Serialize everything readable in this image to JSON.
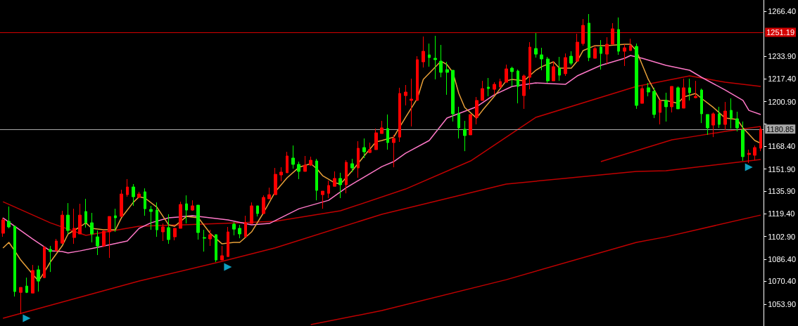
{
  "chart_data": {
    "type": "candlestick",
    "categories": [
      null,
      null,
      null,
      null,
      null,
      null,
      null,
      null,
      null,
      null,
      null,
      null,
      null,
      null,
      null,
      null,
      null,
      null,
      null,
      null,
      null,
      null,
      null,
      null,
      null,
      null,
      null,
      null,
      null,
      null,
      null,
      null,
      null,
      null,
      null,
      null,
      null,
      null,
      null,
      null,
      null,
      null,
      null,
      null,
      null,
      null,
      null,
      null,
      null,
      null,
      null,
      null,
      null,
      null,
      null,
      null,
      null,
      null,
      null,
      null,
      null,
      null,
      null,
      null,
      null,
      null,
      null,
      null,
      null,
      null,
      null,
      null,
      null,
      null,
      null,
      null,
      null,
      null,
      null,
      null,
      null,
      null,
      null,
      null,
      null,
      null,
      null,
      null,
      null,
      null,
      null,
      null,
      null,
      null,
      null,
      null,
      null,
      null,
      null,
      null,
      null,
      null,
      null,
      null,
      null,
      null,
      null,
      null,
      null,
      null,
      null,
      null,
      null,
      null,
      null,
      null,
      null,
      null,
      null,
      null,
      null,
      null,
      null,
      null,
      null,
      null,
      null,
      null,
      null
    ],
    "ylim": [
      1038.0,
      1274.6
    ],
    "yticks": [
      {
        "value": 1053.9,
        "label": "1053.90"
      },
      {
        "value": 1070.4,
        "label": "1070.40"
      },
      {
        "value": 1086.4,
        "label": "1086.40"
      },
      {
        "value": 1102.9,
        "label": "1102.90"
      },
      {
        "value": 1119.4,
        "label": "1119.40"
      },
      {
        "value": 1135.9,
        "label": "1135.90"
      },
      {
        "value": 1151.9,
        "label": "1151.90"
      },
      {
        "value": 1168.4,
        "label": "1168.40"
      },
      {
        "value": 1184.9,
        "label": null
      },
      {
        "value": 1200.9,
        "label": "1200.90"
      },
      {
        "value": 1217.4,
        "label": "1217.40"
      },
      {
        "value": 1233.9,
        "label": "1233.90"
      },
      {
        "value": 1266.4,
        "label": "1266.40"
      }
    ],
    "ref_lines": [
      {
        "axis": "y",
        "value": 1251.19,
        "label": "1251.19",
        "color": "#d40000",
        "line_style": "solid"
      },
      {
        "axis": "y",
        "value": 1180.85,
        "label": "1180.85",
        "color": "#a8a8a8",
        "line_style": "solid"
      }
    ],
    "series": [
      {
        "type": "candlestick",
        "colors": [
          "#ff0000",
          "#00ff00",
          "#00ff00",
          "#ff0000",
          "#00ff00",
          "#ff0000",
          "#00ff00",
          "#ff0000",
          "#00ff00",
          "#ff0000",
          "#ff0000",
          "#00ff00",
          "#ff0000",
          "#ff0000",
          "#00ff00",
          "#00ff00",
          "#00ff00",
          "#ff0000",
          "#ff0000",
          "#00ff00",
          "#ff0000",
          "#ff0000",
          "#00ff00",
          "#ff0000",
          "#00ff00",
          "#00ff00",
          "#00ff00",
          "#ff0000",
          "#00ff00",
          "#ff0000",
          "#ff0000",
          "#00ff00",
          "#ff0000",
          "#00ff00",
          "#00ff00",
          "#ff0000",
          "#00ff00",
          "#ff0000",
          "#ff0000",
          "#00ff00",
          "#00ff00",
          "#ff0000",
          "#ff0000",
          "#00ff00",
          "#ff0000",
          "#ff0000",
          "#ff0000",
          "#ff0000",
          "#ff0000",
          "#00ff00",
          "#00ff00",
          "#ff0000",
          "#ff0000",
          "#00ff00",
          "#ff0000",
          "#ff0000",
          "#ff0000",
          "#00ff00",
          "#ff0000",
          "#00ff00",
          "#ff0000",
          "#00ff00",
          "#ff0000",
          "#ff0000",
          "#ff0000",
          "#00ff00",
          "#ff0000",
          "#ff0000",
          "#ff0000",
          "#ff0000",
          "#ff0000",
          "#ff0000",
          "#00ff00",
          "#00ff00",
          "#00ff00",
          "#00ff00",
          "#00ff00",
          "#00ff00",
          "#00ff00",
          "#ff0000",
          "#ff0000",
          "#ff0000",
          "#00ff00",
          "#ff0000",
          "#ff0000",
          "#ff0000",
          "#00ff00",
          "#00ff00",
          "#ff0000",
          "#ff0000",
          "#00ff00",
          "#00ff00",
          "#00ff00",
          "#ff0000",
          "#00ff00",
          "#ff0000",
          "#00ff00",
          "#ff0000",
          "#ff0000",
          "#00ff00",
          "#ff0000",
          "#00ff00",
          "#ff0000",
          "#ff0000",
          "#00ff00",
          "#ff0000",
          "#ff0000",
          "#00ff00",
          "#ff0000",
          "#00ff00",
          "#00ff00",
          "#ff0000",
          "#00ff00",
          "#ff0000",
          "#00ff00",
          "#ff0000",
          "#00ff00",
          "#ff0000",
          "#00ff00",
          "#00ff00",
          "#ff0000",
          "#00ff00",
          "#ff0000",
          "#00ff00",
          "#00ff00",
          "#00ff00",
          "#ff0000",
          "#ff0000",
          "#ff0000"
        ],
        "ohlc": [
          [
            1105.3,
            1116.5,
            1102.7,
            1115.0
          ],
          [
            1114.0,
            1124.7,
            1108.9,
            1109.9
          ],
          [
            1110.4,
            1110.4,
            1059.4,
            1063.0
          ],
          [
            1062.4,
            1066.0,
            1046.6,
            1066.0
          ],
          [
            1067.0,
            1073.1,
            1061.9,
            1062.4
          ],
          [
            1061.9,
            1082.3,
            1061.9,
            1078.3
          ],
          [
            1078.8,
            1081.8,
            1063.0,
            1070.6
          ],
          [
            1073.1,
            1096.1,
            1073.1,
            1095.1
          ],
          [
            1093.6,
            1096.1,
            1077.2,
            1092.0
          ],
          [
            1092.5,
            1101.2,
            1092.5,
            1099.7
          ],
          [
            1098.1,
            1121.6,
            1097.6,
            1118.5
          ],
          [
            1118.5,
            1127.2,
            1104.8,
            1107.3
          ],
          [
            1102.2,
            1123.1,
            1097.6,
            1108.9
          ],
          [
            1104.8,
            1126.7,
            1104.8,
            1118.5
          ],
          [
            1121.1,
            1130.3,
            1109.4,
            1112.9
          ],
          [
            1112.9,
            1120.1,
            1098.7,
            1104.8
          ],
          [
            1102.7,
            1107.3,
            1089.5,
            1096.1
          ],
          [
            1096.1,
            1107.8,
            1095.1,
            1106.8
          ],
          [
            1106.3,
            1117.5,
            1087.4,
            1117.5
          ],
          [
            1118.0,
            1123.1,
            1106.3,
            1116.5
          ],
          [
            1117.5,
            1136.9,
            1117.5,
            1133.8
          ],
          [
            1133.3,
            1144.6,
            1131.8,
            1138.9
          ],
          [
            1138.9,
            1141.0,
            1125.2,
            1131.8
          ],
          [
            1131.3,
            1135.4,
            1131.3,
            1133.8
          ],
          [
            1135.4,
            1137.9,
            1118.0,
            1123.1
          ],
          [
            1122.6,
            1125.2,
            1107.8,
            1121.1
          ],
          [
            1122.1,
            1127.7,
            1102.7,
            1107.8
          ],
          [
            1106.3,
            1112.4,
            1099.7,
            1109.9
          ],
          [
            1109.4,
            1119.1,
            1097.6,
            1100.7
          ],
          [
            1102.7,
            1108.9,
            1100.2,
            1108.9
          ],
          [
            1108.9,
            1128.2,
            1108.9,
            1126.2
          ],
          [
            1126.7,
            1132.8,
            1112.4,
            1122.1
          ],
          [
            1122.1,
            1129.2,
            1121.6,
            1125.2
          ],
          [
            1125.7,
            1125.7,
            1100.7,
            1105.8
          ],
          [
            1102.2,
            1107.8,
            1092.0,
            1101.7
          ],
          [
            1101.2,
            1107.8,
            1096.1,
            1104.3
          ],
          [
            1104.3,
            1104.3,
            1084.4,
            1085.9
          ],
          [
            1085.9,
            1096.1,
            1085.9,
            1089.0
          ],
          [
            1088.4,
            1109.9,
            1088.4,
            1106.3
          ],
          [
            1111.9,
            1113.4,
            1103.8,
            1108.3
          ],
          [
            1108.9,
            1111.4,
            1101.7,
            1104.8
          ],
          [
            1102.7,
            1118.0,
            1102.7,
            1112.9
          ],
          [
            1112.4,
            1127.7,
            1112.4,
            1125.2
          ],
          [
            1125.2,
            1125.2,
            1117.5,
            1119.6
          ],
          [
            1119.6,
            1132.8,
            1119.6,
            1131.3
          ],
          [
            1130.3,
            1138.4,
            1130.3,
            1133.3
          ],
          [
            1133.3,
            1152.7,
            1133.3,
            1148.1
          ],
          [
            1147.6,
            1153.2,
            1143.0,
            1149.7
          ],
          [
            1149.2,
            1164.4,
            1149.2,
            1161.4
          ],
          [
            1159.9,
            1169.0,
            1152.2,
            1155.3
          ],
          [
            1155.3,
            1157.3,
            1144.6,
            1150.2
          ],
          [
            1150.2,
            1161.4,
            1150.2,
            1154.8
          ],
          [
            1154.8,
            1160.9,
            1154.2,
            1158.3
          ],
          [
            1157.8,
            1159.3,
            1129.2,
            1136.4
          ],
          [
            1133.3,
            1135.9,
            1123.1,
            1135.9
          ],
          [
            1134.3,
            1143.5,
            1130.8,
            1140.0
          ],
          [
            1139.4,
            1150.2,
            1139.4,
            1145.1
          ],
          [
            1145.1,
            1149.2,
            1130.8,
            1140.5
          ],
          [
            1140.5,
            1158.3,
            1134.3,
            1156.8
          ],
          [
            1155.8,
            1159.3,
            1149.7,
            1152.7
          ],
          [
            1152.7,
            1172.1,
            1145.6,
            1167.0
          ],
          [
            1167.5,
            1174.1,
            1159.9,
            1164.4
          ],
          [
            1163.9,
            1171.1,
            1163.4,
            1166.0
          ],
          [
            1166.0,
            1181.3,
            1166.0,
            1178.2
          ],
          [
            1177.7,
            1186.9,
            1177.7,
            1181.8
          ],
          [
            1181.3,
            1191.5,
            1166.0,
            1171.1
          ],
          [
            1171.1,
            1176.7,
            1153.2,
            1174.1
          ],
          [
            1175.1,
            1210.9,
            1171.6,
            1206.8
          ],
          [
            1205.2,
            1212.9,
            1198.1,
            1207.8
          ],
          [
            1201.7,
            1217.5,
            1182.8,
            1202.7
          ],
          [
            1201.7,
            1233.8,
            1201.7,
            1231.3
          ],
          [
            1229.7,
            1248.1,
            1225.6,
            1237.4
          ],
          [
            1234.8,
            1243.0,
            1226.2,
            1232.8
          ],
          [
            1232.3,
            1248.6,
            1217.0,
            1231.3
          ],
          [
            1230.2,
            1242.0,
            1218.5,
            1222.1
          ],
          [
            1224.1,
            1229.7,
            1205.8,
            1222.1
          ],
          [
            1223.6,
            1223.6,
            1186.4,
            1192.0
          ],
          [
            1192.0,
            1197.1,
            1174.1,
            1181.8
          ],
          [
            1180.8,
            1186.9,
            1164.9,
            1176.2
          ],
          [
            1176.7,
            1191.5,
            1176.7,
            1191.5
          ],
          [
            1189.4,
            1204.2,
            1184.3,
            1201.7
          ],
          [
            1201.7,
            1215.9,
            1201.7,
            1210.3
          ],
          [
            1211.4,
            1218.0,
            1204.7,
            1210.3
          ],
          [
            1209.8,
            1214.9,
            1205.8,
            1213.4
          ],
          [
            1211.4,
            1217.5,
            1211.4,
            1215.4
          ],
          [
            1214.9,
            1227.7,
            1214.9,
            1224.6
          ],
          [
            1225.1,
            1226.2,
            1211.9,
            1222.6
          ],
          [
            1223.1,
            1224.1,
            1199.6,
            1211.9
          ],
          [
            1205.2,
            1220.5,
            1195.6,
            1219.5
          ],
          [
            1218.5,
            1244.0,
            1209.8,
            1240.4
          ],
          [
            1239.4,
            1250.6,
            1232.8,
            1235.3
          ],
          [
            1234.8,
            1239.9,
            1223.6,
            1231.8
          ],
          [
            1231.8,
            1233.3,
            1214.4,
            1215.9
          ],
          [
            1215.9,
            1230.2,
            1215.9,
            1226.2
          ],
          [
            1225.1,
            1233.3,
            1215.9,
            1220.0
          ],
          [
            1221.1,
            1235.8,
            1219.5,
            1232.8
          ],
          [
            1233.8,
            1237.4,
            1227.2,
            1228.7
          ],
          [
            1230.2,
            1250.1,
            1230.2,
            1244.0
          ],
          [
            1243.0,
            1260.8,
            1241.5,
            1256.2
          ],
          [
            1257.8,
            1264.4,
            1230.2,
            1232.8
          ],
          [
            1232.3,
            1241.5,
            1232.3,
            1239.4
          ],
          [
            1240.4,
            1245.5,
            1224.1,
            1235.8
          ],
          [
            1235.3,
            1247.6,
            1227.7,
            1242.5
          ],
          [
            1242.5,
            1257.8,
            1242.5,
            1253.7
          ],
          [
            1253.2,
            1261.9,
            1234.8,
            1237.4
          ],
          [
            1237.4,
            1242.5,
            1226.7,
            1239.9
          ],
          [
            1237.9,
            1246.5,
            1237.9,
            1241.5
          ],
          [
            1240.9,
            1243.0,
            1195.6,
            1198.1
          ],
          [
            1199.6,
            1212.4,
            1199.6,
            1210.3
          ],
          [
            1210.9,
            1214.4,
            1204.7,
            1207.8
          ],
          [
            1208.3,
            1210.9,
            1188.9,
            1191.5
          ],
          [
            1193.0,
            1201.7,
            1184.3,
            1201.7
          ],
          [
            1201.7,
            1207.3,
            1186.4,
            1197.1
          ],
          [
            1197.1,
            1211.9,
            1193.0,
            1211.9
          ],
          [
            1210.9,
            1211.9,
            1195.6,
            1195.6
          ],
          [
            1196.1,
            1217.5,
            1196.1,
            1210.9
          ],
          [
            1210.9,
            1217.5,
            1201.7,
            1207.3
          ],
          [
            1203.7,
            1215.9,
            1203.2,
            1204.7
          ],
          [
            1209.3,
            1210.3,
            1185.3,
            1192.0
          ],
          [
            1191.5,
            1191.5,
            1176.7,
            1181.8
          ],
          [
            1183.8,
            1193.0,
            1175.1,
            1192.0
          ],
          [
            1192.0,
            1197.1,
            1181.8,
            1184.3
          ],
          [
            1184.3,
            1200.6,
            1180.2,
            1194.0
          ],
          [
            1194.5,
            1203.2,
            1181.3,
            1188.9
          ],
          [
            1188.4,
            1193.5,
            1179.2,
            1181.8
          ],
          [
            1180.2,
            1186.4,
            1157.8,
            1160.9
          ],
          [
            1162.4,
            1166.0,
            1156.3,
            1163.4
          ],
          [
            1161.9,
            1169.0,
            1158.3,
            1167.5
          ],
          [
            1167.0,
            1182.8,
            1164.9,
            1180.85
          ]
        ]
      },
      {
        "type": "line",
        "color": "#c00000",
        "values": [
          1128.2,
          null,
          null,
          null,
          null,
          null,
          null,
          null,
          1112.9,
          null,
          null,
          null,
          null,
          null,
          1103.8,
          null,
          null,
          null,
          null,
          null,
          null,
          null,
          null,
          1110.4,
          null,
          null,
          null,
          null,
          null,
          null,
          null,
          null,
          null,
          null,
          null,
          null,
          null,
          1112.4,
          null,
          null,
          null,
          null,
          null,
          null,
          null,
          null,
          1114.0,
          null,
          null,
          null,
          null,
          null,
          null,
          null,
          null,
          null,
          null,
          1121.6,
          null,
          null,
          null,
          null,
          null,
          null,
          null,
          null,
          null,
          null,
          1137.4,
          null,
          null,
          null,
          null,
          null,
          null,
          null,
          null,
          null,
          null,
          1157.8,
          null,
          null,
          null,
          null,
          null,
          null,
          null,
          null,
          null,
          null,
          1189.4,
          null,
          null,
          null,
          null,
          null,
          null,
          null,
          null,
          null,
          null,
          null,
          null,
          null,
          null,
          null,
          null,
          1211.9,
          null,
          null,
          null,
          null,
          null,
          1217.0,
          null,
          null,
          1219.5,
          null,
          null,
          null,
          null,
          null,
          1214.9,
          null,
          null,
          null,
          null,
          null,
          1211.9
        ]
      },
      {
        "type": "line",
        "color": "#c00000",
        "values": [
          null,
          null,
          null,
          null,
          null,
          null,
          null,
          null,
          null,
          null,
          null,
          null,
          null,
          null,
          null,
          null,
          null,
          null,
          null,
          null,
          null,
          null,
          null,
          null,
          null,
          null,
          null,
          null,
          null,
          null,
          null,
          null,
          null,
          null,
          null,
          null,
          null,
          null,
          null,
          null,
          null,
          null,
          null,
          null,
          null,
          null,
          null,
          null,
          null,
          null,
          null,
          null,
          null,
          null,
          null,
          null,
          null,
          null,
          null,
          null,
          null,
          null,
          null,
          null,
          null,
          null,
          null,
          null,
          null,
          null,
          null,
          null,
          null,
          null,
          null,
          null,
          null,
          null,
          null,
          null,
          null,
          null,
          null,
          null,
          null,
          null,
          null,
          null,
          null,
          null,
          null,
          null,
          null,
          null,
          null,
          null,
          null,
          null,
          null,
          null,
          null,
          1157.3,
          null,
          null,
          null,
          null,
          null,
          null,
          null,
          null,
          null,
          null,
          null,
          1173.1,
          null,
          null,
          1175.1,
          null,
          null,
          null,
          null,
          null,
          1179.2,
          null,
          null,
          null,
          null,
          null,
          1182.8
        ]
      },
      {
        "type": "line",
        "color": "#c00000",
        "values": [
          1043.6,
          null,
          null,
          null,
          null,
          null,
          null,
          null,
          null,
          null,
          null,
          null,
          null,
          null,
          null,
          null,
          null,
          null,
          null,
          null,
          null,
          null,
          null,
          1070.6,
          null,
          null,
          null,
          null,
          null,
          null,
          null,
          null,
          null,
          null,
          null,
          null,
          null,
          1084.9,
          null,
          null,
          null,
          null,
          null,
          null,
          null,
          null,
          1094.7,
          null,
          null,
          null,
          null,
          null,
          null,
          null,
          null,
          null,
          null,
          null,
          null,
          null,
          null,
          null,
          null,
          null,
          1119.1,
          null,
          null,
          null,
          null,
          null,
          null,
          null,
          null,
          null,
          null,
          null,
          null,
          null,
          null,
          null,
          null,
          null,
          null,
          null,
          null,
          1141.0,
          null,
          null,
          null,
          null,
          null,
          null,
          null,
          null,
          null,
          null,
          null,
          null,
          null,
          null,
          null,
          null,
          null,
          null,
          null,
          null,
          null,
          1150.2,
          null,
          null,
          null,
          null,
          1150.7,
          null,
          null,
          null,
          null,
          null,
          null,
          null,
          null,
          null,
          null,
          null,
          null,
          null,
          null,
          null,
          1158.8
        ]
      },
      {
        "type": "line",
        "color": "#c00000",
        "values": [
          null,
          null,
          null,
          null,
          null,
          null,
          null,
          null,
          null,
          null,
          null,
          null,
          null,
          null,
          null,
          null,
          null,
          null,
          null,
          null,
          null,
          null,
          null,
          null,
          null,
          null,
          null,
          null,
          null,
          null,
          null,
          null,
          null,
          null,
          null,
          null,
          null,
          null,
          null,
          null,
          null,
          null,
          null,
          null,
          null,
          null,
          null,
          null,
          null,
          null,
          null,
          null,
          1039.0,
          null,
          null,
          null,
          null,
          null,
          null,
          null,
          null,
          null,
          null,
          null,
          1049.2,
          null,
          null,
          null,
          null,
          null,
          null,
          null,
          null,
          null,
          null,
          null,
          null,
          null,
          null,
          null,
          null,
          null,
          null,
          null,
          null,
          1071.6,
          null,
          null,
          null,
          null,
          null,
          null,
          null,
          null,
          null,
          null,
          null,
          null,
          null,
          null,
          null,
          null,
          null,
          null,
          null,
          null,
          null,
          1098.7,
          null,
          null,
          null,
          null,
          1102.7,
          null,
          null,
          null,
          null,
          null,
          null,
          null,
          null,
          null,
          null,
          null,
          null,
          null,
          null,
          null,
          1118.5
        ]
      },
      {
        "type": "line",
        "color": "#ff78c8",
        "values": [
          1116.5,
          null,
          1110.4,
          null,
          null,
          1101.2,
          null,
          null,
          1092.5,
          null,
          1092.0,
          1091.0,
          null,
          1092.5,
          null,
          null,
          1095.1,
          null,
          null,
          null,
          null,
          1099.7,
          null,
          1108.9,
          null,
          1112.9,
          null,
          null,
          1116.5,
          null,
          null,
          null,
          1118.0,
          null,
          null,
          1116.5,
          null,
          null,
          1115.0,
          null,
          null,
          null,
          1111.4,
          null,
          null,
          1112.4,
          null,
          null,
          null,
          null,
          1123.1,
          null,
          null,
          null,
          null,
          1129.2,
          null,
          null,
          1138.4,
          null,
          null,
          null,
          null,
          null,
          1153.7,
          null,
          1157.3,
          null,
          1163.4,
          null,
          null,
          null,
          1172.6,
          null,
          null,
          1188.9,
          null,
          null,
          null,
          null,
          1197.1,
          null,
          null,
          1205.8,
          null,
          null,
          1211.9,
          null,
          null,
          null,
          1214.4,
          null,
          null,
          null,
          null,
          1213.4,
          null,
          1219.5,
          null,
          null,
          null,
          1227.2,
          null,
          null,
          null,
          1232.3,
          1234.3,
          null,
          1232.3,
          null,
          null,
          null,
          1227.2,
          null,
          null,
          null,
          1223.6,
          null,
          1218.5,
          null,
          null,
          null,
          1209.3,
          null,
          null,
          1201.7,
          1194.5,
          null,
          1191.5
        ]
      },
      {
        "type": "line",
        "color": "#e8a038",
        "values": [
          1094.6,
          1098.7,
          1092.5,
          1085.9,
          null,
          null,
          1070.6,
          1077.2,
          1084.4,
          null,
          1096.1,
          1104.8,
          null,
          1109.9,
          1112.9,
          1108.9,
          null,
          1107.8,
          null,
          1107.8,
          1116.5,
          null,
          1127.7,
          1131.8,
          1130.8,
          null,
          1124.2,
          null,
          1111.4,
          1110.4,
          null,
          1117.5,
          null,
          1116.5,
          null,
          1105.3,
          null,
          1097.6,
          null,
          1098.7,
          1098.7,
          null,
          1106.3,
          null,
          1120.1,
          null,
          1135.4,
          null,
          1145.6,
          null,
          1153.2,
          null,
          1155.8,
          1152.2,
          1147.1,
          null,
          1142.0,
          1141.0,
          null,
          1150.7,
          null,
          1161.4,
          null,
          1171.6,
          1172.6,
          null,
          1175.1,
          null,
          1189.4,
          null,
          1203.2,
          1217.0,
          null,
          null,
          1230.2,
          1227.7,
          1222.1,
          1206.8,
          1196.6,
          null,
          1188.9,
          1194.5,
          null,
          1204.7,
          null,
          1215.9,
          1217.0,
          null,
          1215.9,
          null,
          1223.6,
          1226.2,
          null,
          1229.7,
          1225.1,
          null,
          1225.1,
          1230.2,
          1237.9,
          null,
          1241.5,
          null,
          1241.5,
          null,
          null,
          1242.5,
          1242.5,
          1237.9,
          null,
          1217.0,
          null,
          1201.7,
          1201.7,
          null,
          1199.6,
          1204.2,
          null,
          1206.8,
          1203.2,
          null,
          1196.6,
          null,
          1188.9,
          null,
          1187.9,
          1181.8,
          null,
          1172.6,
          1170.6
        ]
      },
      {
        "type": "scatter",
        "marker": "triangle",
        "color": "#12c8f0",
        "values": [
          null,
          null,
          null,
          null,
          1043.6,
          null,
          null,
          null,
          null,
          null,
          null,
          null,
          null,
          null,
          null,
          null,
          null,
          null,
          null,
          null,
          null,
          null,
          null,
          null,
          null,
          null,
          null,
          null,
          null,
          null,
          null,
          null,
          null,
          null,
          null,
          null,
          null,
          null,
          1080.8,
          null,
          null,
          null,
          null,
          null,
          null,
          null,
          null,
          null,
          null,
          null,
          null,
          null,
          null,
          null,
          null,
          null,
          null,
          null,
          null,
          null,
          null,
          null,
          null,
          null,
          null,
          null,
          null,
          null,
          null,
          null,
          null,
          null,
          null,
          null,
          null,
          null,
          null,
          null,
          null,
          null,
          null,
          null,
          null,
          null,
          null,
          null,
          null,
          null,
          null,
          null,
          null,
          null,
          null,
          null,
          null,
          null,
          null,
          null,
          null,
          null,
          null,
          null,
          null,
          null,
          null,
          null,
          null,
          null,
          null,
          null,
          null,
          null,
          null,
          null,
          null,
          null,
          null,
          null,
          null,
          null,
          null,
          null,
          null,
          null,
          null,
          null,
          1153.2,
          null,
          null
        ]
      }
    ]
  }
}
